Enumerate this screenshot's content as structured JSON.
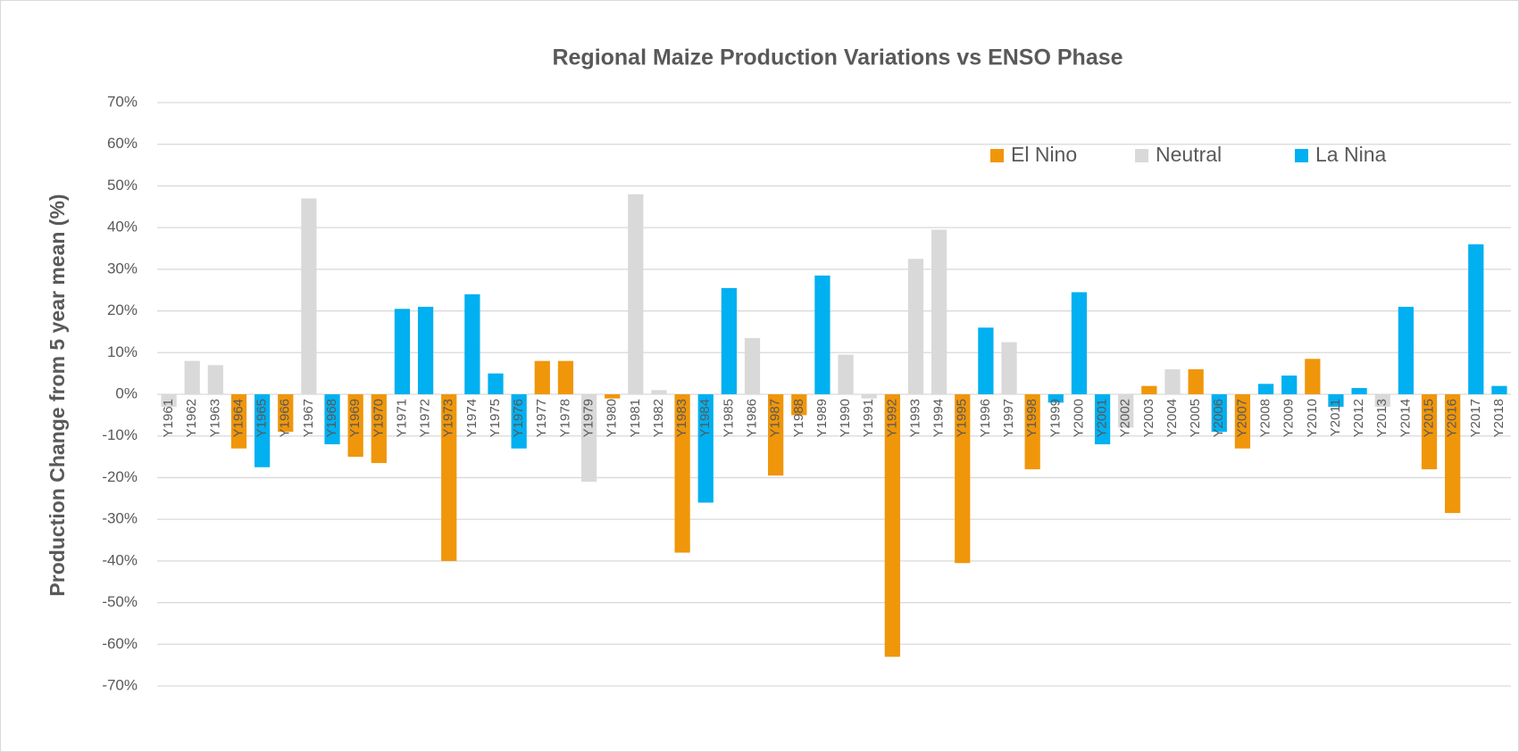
{
  "chart_data": {
    "type": "bar",
    "title": "Regional Maize Production Variations vs ENSO Phase",
    "y_label": "Production Change from 5 year mean (%)",
    "categories": [
      "Y1961",
      "Y1962",
      "Y1963",
      "Y1964",
      "Y1965",
      "Y1966",
      "Y1967",
      "Y1968",
      "Y1969",
      "Y1970",
      "Y1971",
      "Y1972",
      "Y1973",
      "Y1974",
      "Y1975",
      "Y1976",
      "Y1977",
      "Y1978",
      "Y1979",
      "Y1980",
      "Y1981",
      "Y1982",
      "Y1983",
      "Y1984",
      "Y1985",
      "Y1986",
      "Y1987",
      "Y1988",
      "Y1989",
      "Y1990",
      "Y1991",
      "Y1992",
      "Y1993",
      "Y1994",
      "Y1995",
      "Y1996",
      "Y1997",
      "Y1998",
      "Y1999",
      "Y2000",
      "Y2001",
      "Y2002",
      "Y2003",
      "Y2004",
      "Y2005",
      "Y2006",
      "Y2007",
      "Y2008",
      "Y2009",
      "Y2010",
      "Y2011",
      "Y2012",
      "Y2013",
      "Y2014",
      "Y2015",
      "Y2016",
      "Y2017",
      "Y2018"
    ],
    "series": [
      {
        "name": "El Nino",
        "color": "#f0960a",
        "values": [
          null,
          null,
          null,
          -13,
          null,
          -9,
          null,
          null,
          -15,
          -16.5,
          null,
          null,
          -40,
          null,
          null,
          null,
          8,
          8,
          null,
          -1,
          null,
          null,
          -38,
          null,
          null,
          null,
          -19.5,
          -5,
          null,
          null,
          null,
          -63,
          null,
          null,
          -40.5,
          null,
          null,
          -18,
          null,
          null,
          null,
          null,
          2,
          null,
          6,
          null,
          -13,
          null,
          null,
          8.5,
          null,
          null,
          null,
          null,
          -18,
          -28.5,
          null,
          null
        ]
      },
      {
        "name": "Neutral",
        "color": "#d9d9d9",
        "values": [
          -3,
          8,
          7,
          null,
          null,
          null,
          47,
          null,
          null,
          null,
          null,
          null,
          null,
          null,
          null,
          null,
          null,
          null,
          -21,
          null,
          48,
          1,
          null,
          null,
          null,
          13.5,
          null,
          null,
          null,
          9.5,
          -1,
          null,
          32.5,
          39.5,
          null,
          null,
          12.5,
          null,
          null,
          null,
          null,
          -8,
          null,
          6,
          null,
          null,
          null,
          null,
          null,
          null,
          null,
          null,
          -3,
          null,
          null,
          null,
          null,
          null
        ]
      },
      {
        "name": "La Nina",
        "color": "#00b0f0",
        "values": [
          null,
          null,
          null,
          null,
          -17.5,
          null,
          null,
          -12,
          null,
          null,
          20.5,
          21,
          null,
          24,
          5,
          -13,
          null,
          null,
          null,
          null,
          null,
          null,
          null,
          -26,
          25.5,
          null,
          null,
          null,
          28.5,
          null,
          null,
          null,
          null,
          null,
          null,
          16,
          null,
          null,
          -2,
          24.5,
          -12,
          null,
          null,
          null,
          null,
          -9,
          null,
          2.5,
          4.5,
          null,
          -3,
          1.5,
          null,
          21,
          null,
          null,
          36,
          2
        ]
      }
    ],
    "ylim": [
      -70,
      70
    ],
    "yticks": [
      {
        "value": -70,
        "label": "-70%"
      },
      {
        "value": -60,
        "label": "-60%"
      },
      {
        "value": -50,
        "label": "-50%"
      },
      {
        "value": -40,
        "label": "-40%"
      },
      {
        "value": -30,
        "label": "-30%"
      },
      {
        "value": -20,
        "label": "-20%"
      },
      {
        "value": -10,
        "label": "-10%"
      },
      {
        "value": 0,
        "label": "0%"
      },
      {
        "value": 10,
        "label": "10%"
      },
      {
        "value": 20,
        "label": "20%"
      },
      {
        "value": 30,
        "label": "30%"
      },
      {
        "value": 40,
        "label": "40%"
      },
      {
        "value": 50,
        "label": "50%"
      },
      {
        "value": 60,
        "label": "60%"
      },
      {
        "value": 70,
        "label": "70%"
      }
    ],
    "grid": true
  }
}
